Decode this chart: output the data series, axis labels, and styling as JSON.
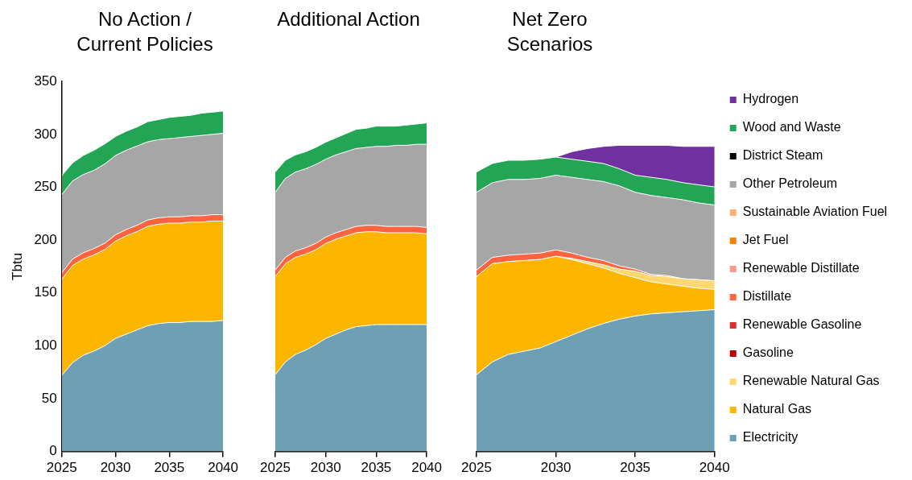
{
  "chart_data": [
    {
      "type": "area",
      "stacked": true,
      "title": "No Action / Current Policies",
      "ylabel": "Tbtu",
      "x": [
        2025,
        2026,
        2027,
        2028,
        2029,
        2030,
        2031,
        2032,
        2033,
        2034,
        2035,
        2036,
        2037,
        2038,
        2039,
        2040
      ],
      "xlim": [
        2025,
        2040
      ],
      "xticks": [
        2025,
        2030,
        2035,
        2040
      ],
      "ylim": [
        0,
        350
      ],
      "yticks": [
        0,
        50,
        100,
        150,
        200,
        250,
        300,
        350
      ],
      "grid": false,
      "legend": false,
      "series": [
        {
          "color": "#6ea0b5",
          "values": [
            72,
            84,
            91,
            95,
            100,
            107,
            111,
            115,
            119,
            121,
            122,
            122,
            123,
            123,
            123,
            124
          ]
        },
        {
          "color": "#fdb600",
          "values": [
            91,
            92,
            91,
            91,
            91,
            92,
            93,
            93,
            94,
            94,
            94,
            94,
            94,
            94,
            95,
            94
          ]
        },
        {
          "color": "#ff6340",
          "values": [
            6,
            6,
            6,
            6,
            6,
            6,
            6,
            6,
            6,
            6,
            6,
            6,
            6,
            6,
            6,
            6
          ]
        },
        {
          "color": "#a6a6a6",
          "values": [
            74,
            74,
            74,
            74,
            75,
            75,
            75,
            75,
            74,
            74,
            74,
            75,
            75,
            76,
            76,
            77
          ]
        },
        {
          "color": "#22a655",
          "values": [
            18,
            17,
            18,
            19,
            19,
            18,
            18,
            18,
            19,
            19,
            20,
            20,
            20,
            21,
            21,
            21
          ]
        }
      ]
    },
    {
      "type": "area",
      "stacked": true,
      "title": "Additional Action",
      "tick_labels": "x",
      "x": [
        2025,
        2026,
        2027,
        2028,
        2029,
        2030,
        2031,
        2032,
        2033,
        2034,
        2035,
        2036,
        2037,
        2038,
        2039,
        2040
      ],
      "xlim": [
        2025,
        2040
      ],
      "xticks": [
        2025,
        2030,
        2035,
        2040
      ],
      "ylim": [
        0,
        350
      ],
      "yticks": [
        0,
        50,
        100,
        150,
        200,
        250,
        300,
        350
      ],
      "grid": false,
      "legend": false,
      "series": [
        {
          "color": "#6ea0b5",
          "values": [
            72,
            84,
            91,
            95,
            100,
            106,
            110,
            114,
            117,
            118,
            119,
            119,
            119,
            119,
            119,
            119
          ]
        },
        {
          "color": "#fdb600",
          "values": [
            92,
            92,
            91,
            90,
            89,
            89,
            89,
            88,
            88,
            88,
            87,
            86,
            86,
            86,
            86,
            85
          ]
        },
        {
          "color": "#ff6340",
          "values": [
            6,
            6,
            6,
            6,
            6,
            6,
            6,
            6,
            6,
            6,
            6,
            6,
            6,
            6,
            6,
            6
          ]
        },
        {
          "color": "#a6a6a6",
          "values": [
            73,
            74,
            74,
            74,
            74,
            73,
            73,
            73,
            73,
            73,
            74,
            75,
            76,
            76,
            77,
            78
          ]
        },
        {
          "color": "#22a655",
          "values": [
            19,
            17,
            16,
            16,
            16,
            16,
            16,
            17,
            18,
            18,
            19,
            19,
            18,
            19,
            19,
            20
          ]
        }
      ]
    },
    {
      "type": "area",
      "stacked": true,
      "title": "Net Zero Scenarios",
      "tick_labels": "x",
      "x": [
        2025,
        2026,
        2027,
        2028,
        2029,
        2030,
        2031,
        2032,
        2033,
        2034,
        2035,
        2036,
        2037,
        2038,
        2039,
        2040
      ],
      "xlim": [
        2025,
        2040
      ],
      "xticks": [
        2025,
        2030,
        2035,
        2040
      ],
      "ylim": [
        0,
        350
      ],
      "yticks": [
        0,
        50,
        100,
        150,
        200,
        250,
        300,
        350
      ],
      "grid": false,
      "legend": "right",
      "series": [
        {
          "name": "Electricity",
          "color": "#6ea0b5",
          "values": [
            72,
            84,
            91,
            94,
            97,
            103,
            109,
            115,
            120,
            124,
            127,
            129,
            130,
            131,
            132,
            133
          ]
        },
        {
          "name": "Natural Gas",
          "color": "#fdb600",
          "values": [
            92,
            92,
            87,
            85,
            83,
            80,
            71,
            61,
            52,
            43,
            36,
            30,
            27,
            24,
            21,
            19
          ]
        },
        {
          "name": "Renewable Natural Gas",
          "color": "#fdd870",
          "values": [
            0,
            0,
            0,
            0,
            0,
            0,
            1,
            2,
            3,
            4,
            6,
            6,
            7,
            7,
            8,
            8
          ]
        },
        {
          "name": "Gasoline",
          "color": "#c00000",
          "values": [
            null,
            null,
            null,
            null,
            null,
            null,
            null,
            null,
            null,
            null,
            null,
            null,
            null,
            null,
            null,
            null
          ]
        },
        {
          "name": "Renewable Gasoline",
          "color": "#d83030",
          "values": [
            null,
            null,
            null,
            null,
            null,
            null,
            null,
            null,
            null,
            null,
            null,
            null,
            null,
            null,
            null,
            null
          ]
        },
        {
          "name": "Distillate",
          "color": "#ff6340",
          "values": [
            6,
            6,
            6,
            6,
            6,
            6,
            5,
            4,
            4,
            3,
            2,
            1,
            1,
            0,
            0,
            0
          ]
        },
        {
          "name": "Renewable Distillate",
          "color": "#ff9b85",
          "values": [
            null,
            null,
            null,
            null,
            null,
            null,
            null,
            null,
            null,
            null,
            null,
            null,
            null,
            null,
            null,
            null
          ]
        },
        {
          "name": "Jet Fuel",
          "color": "#ff8000",
          "values": [
            null,
            null,
            null,
            null,
            null,
            null,
            null,
            null,
            null,
            null,
            null,
            null,
            null,
            null,
            null,
            null
          ]
        },
        {
          "name": "Sustainable Aviation Fuel",
          "color": "#ffb070",
          "values": [
            null,
            null,
            null,
            null,
            null,
            null,
            null,
            null,
            null,
            null,
            null,
            null,
            null,
            null,
            null,
            null
          ]
        },
        {
          "name": "Other Petroleum",
          "color": "#a6a6a6",
          "values": [
            73,
            70,
            71,
            70,
            70,
            70,
            71,
            73,
            74,
            75,
            72,
            74,
            73,
            74,
            72,
            71
          ]
        },
        {
          "name": "District Steam",
          "color": "#000000",
          "values": [
            null,
            null,
            null,
            null,
            null,
            null,
            null,
            null,
            null,
            null,
            null,
            null,
            null,
            null,
            null,
            null
          ]
        },
        {
          "name": "Wood and Waste",
          "color": "#22a655",
          "values": [
            19,
            18,
            18,
            18,
            18,
            17,
            17,
            17,
            17,
            16,
            16,
            17,
            17,
            16,
            17,
            17
          ]
        },
        {
          "name": "Hydrogen",
          "color": "#7030a0",
          "values": [
            null,
            null,
            null,
            null,
            null,
            0,
            7,
            12,
            16,
            22,
            28,
            30,
            32,
            34,
            36,
            38
          ]
        }
      ]
    }
  ]
}
